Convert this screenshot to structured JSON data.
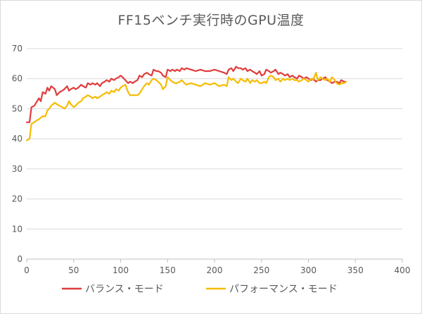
{
  "chart_data": {
    "type": "line",
    "title": "FF15ベンチ実行時のGPU温度",
    "xlabel": "",
    "ylabel": "",
    "xlim": [
      0,
      400
    ],
    "ylim": [
      0,
      70
    ],
    "xticks": [
      0,
      50,
      100,
      150,
      200,
      250,
      300,
      350,
      400
    ],
    "yticks": [
      0,
      10,
      20,
      30,
      40,
      50,
      60,
      70
    ],
    "grid": "horizontal",
    "legend_position": "bottom",
    "series": [
      {
        "name": "バランス・モード",
        "color": "#e03c3c",
        "x": [
          0,
          3,
          5,
          8,
          10,
          13,
          15,
          17,
          20,
          22,
          24,
          26,
          28,
          30,
          32,
          35,
          38,
          40,
          43,
          45,
          47,
          50,
          52,
          55,
          58,
          60,
          63,
          65,
          68,
          70,
          73,
          75,
          78,
          80,
          83,
          85,
          88,
          90,
          93,
          95,
          98,
          100,
          102,
          105,
          108,
          110,
          113,
          115,
          118,
          120,
          123,
          125,
          128,
          130,
          133,
          135,
          138,
          140,
          143,
          145,
          148,
          150,
          153,
          155,
          158,
          160,
          163,
          165,
          168,
          170,
          175,
          180,
          185,
          190,
          195,
          200,
          205,
          210,
          213,
          215,
          218,
          220,
          223,
          225,
          228,
          230,
          233,
          235,
          238,
          240,
          243,
          245,
          248,
          250,
          253,
          255,
          258,
          260,
          263,
          265,
          268,
          270,
          273,
          275,
          278,
          280,
          283,
          285,
          288,
          290,
          293,
          295,
          298,
          300,
          303,
          305,
          308,
          310,
          313,
          315,
          318,
          320,
          323,
          325,
          328,
          330,
          333,
          335,
          338,
          340
        ],
        "values": [
          45.5,
          45.5,
          50.5,
          51,
          52,
          53.5,
          52.5,
          55.5,
          55,
          57,
          56,
          57.5,
          57,
          56.5,
          54.5,
          55.5,
          56,
          56.5,
          57.5,
          56,
          56.5,
          57,
          56.5,
          57,
          58,
          57.5,
          57,
          58.5,
          58,
          58.5,
          58,
          58.5,
          57.5,
          58.5,
          59,
          59.5,
          59,
          60,
          59.5,
          60,
          60.5,
          61,
          60.5,
          59.5,
          58.5,
          59,
          58.5,
          59,
          59.5,
          61,
          60.5,
          61.5,
          62,
          61.5,
          61,
          63,
          62.5,
          62.5,
          62,
          61,
          60.5,
          63,
          62.5,
          63,
          62.5,
          63,
          62.5,
          63.5,
          63,
          63.5,
          63,
          62.5,
          63,
          62.5,
          62.5,
          63,
          62.5,
          62,
          61.5,
          63,
          63.5,
          62.5,
          64,
          63.5,
          63.5,
          63,
          63.5,
          62.5,
          63,
          62.5,
          62,
          61.5,
          62.5,
          61,
          61.5,
          63,
          62.5,
          62,
          62.5,
          63,
          61.5,
          62,
          61.5,
          61,
          61.5,
          60.5,
          61,
          60.5,
          60,
          61,
          60.5,
          60,
          60.5,
          60,
          59.5,
          60,
          59,
          59.5,
          59.5,
          60,
          60.5,
          59.5,
          59,
          58.5,
          59,
          59,
          58.5,
          59.5,
          59,
          59
        ]
      },
      {
        "name": "パフォーマンス・モード",
        "color": "#f5bc00",
        "x": [
          0,
          3,
          5,
          8,
          10,
          13,
          15,
          17,
          20,
          22,
          24,
          26,
          28,
          30,
          32,
          35,
          38,
          40,
          43,
          45,
          47,
          50,
          52,
          55,
          58,
          60,
          63,
          65,
          68,
          70,
          73,
          75,
          78,
          80,
          83,
          85,
          88,
          90,
          93,
          95,
          98,
          100,
          102,
          105,
          108,
          110,
          113,
          115,
          118,
          120,
          123,
          125,
          128,
          130,
          133,
          135,
          138,
          140,
          143,
          145,
          148,
          150,
          153,
          155,
          158,
          160,
          163,
          165,
          168,
          170,
          175,
          180,
          185,
          190,
          195,
          200,
          205,
          210,
          213,
          215,
          218,
          220,
          223,
          225,
          228,
          230,
          233,
          235,
          238,
          240,
          243,
          245,
          248,
          250,
          253,
          255,
          258,
          260,
          263,
          265,
          268,
          270,
          273,
          275,
          278,
          280,
          283,
          285,
          288,
          290,
          293,
          295,
          298,
          300,
          303,
          305,
          308,
          310,
          313,
          315,
          318,
          320,
          323,
          325,
          328,
          330,
          333,
          335,
          338,
          340
        ],
        "values": [
          39.5,
          40,
          45,
          45.5,
          46,
          46.5,
          47,
          47.5,
          47.5,
          49.5,
          50,
          51,
          51.5,
          52,
          51.5,
          51,
          50.5,
          50,
          51,
          52.5,
          51.5,
          50.5,
          51,
          52,
          52.5,
          53.5,
          54,
          54.5,
          54,
          53.5,
          54,
          53.5,
          54,
          54.5,
          55,
          55.5,
          55,
          56,
          55.5,
          56.5,
          56,
          57,
          57.5,
          58,
          55.5,
          54.5,
          54.5,
          54.5,
          54.5,
          55,
          56.5,
          57.5,
          58.5,
          58,
          59.5,
          60,
          59.5,
          59,
          58,
          56.5,
          57.5,
          60.5,
          59.5,
          59,
          58.5,
          58.5,
          59,
          59.5,
          58.5,
          58,
          58.5,
          58,
          57.5,
          58.5,
          58,
          58.5,
          57.5,
          58,
          57.5,
          60.5,
          59.5,
          60,
          59,
          58.5,
          60,
          59.5,
          59,
          60,
          58.5,
          59.5,
          59,
          59.5,
          58.5,
          58.5,
          59,
          58.5,
          60.5,
          61,
          60.5,
          59.5,
          60,
          59,
          60,
          59.5,
          60,
          59.5,
          60,
          59.5,
          59.5,
          59,
          59.5,
          60,
          59.5,
          59,
          60,
          59.5,
          62,
          59.5,
          60.5,
          60,
          59.5,
          60,
          59,
          60.5,
          59.5,
          58.5,
          58,
          58.5,
          58.5,
          59
        ]
      }
    ]
  }
}
